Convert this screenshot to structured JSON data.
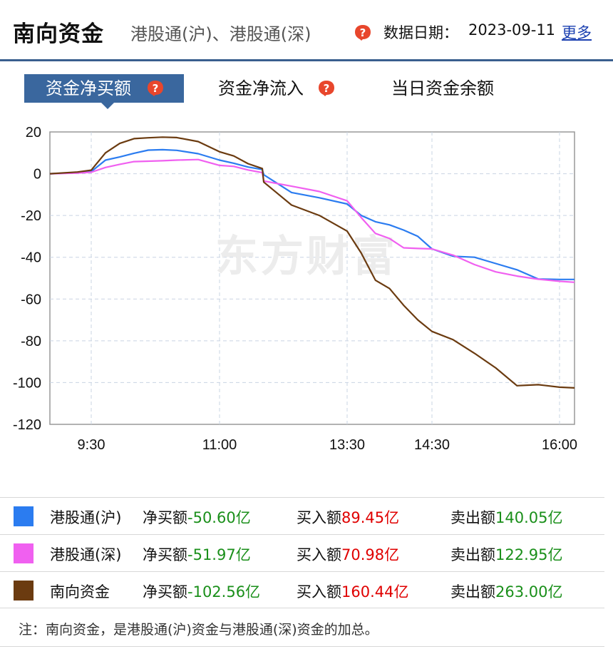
{
  "header": {
    "title": "南向资金",
    "subtitle": "港股通(沪)、港股通(深)",
    "date_label": "数据日期：",
    "date_value": "2023-09-11",
    "more_link": "更多"
  },
  "tabs": [
    {
      "label": "资金净买额",
      "active": true
    },
    {
      "label": "资金净流入",
      "active": false
    },
    {
      "label": "当日资金余额",
      "active": false
    }
  ],
  "watermark": "东方财富",
  "chart_data": {
    "type": "line",
    "xlabel": "",
    "ylabel": "",
    "ylim": [
      -120,
      20
    ],
    "yticks": [
      20,
      0,
      -20,
      -40,
      -60,
      -80,
      -100,
      -120
    ],
    "xticks": [
      "9:30",
      "11:00",
      "13:30",
      "14:30",
      "16:00"
    ],
    "grid": true,
    "series": [
      {
        "name": "港股通(沪)",
        "color": "#2b7cf0",
        "x": [
          "09:00",
          "09:20",
          "09:30",
          "09:40",
          "09:50",
          "10:00",
          "10:10",
          "10:20",
          "10:30",
          "10:45",
          "11:00",
          "11:10",
          "11:20",
          "11:30",
          "13:00",
          "13:10",
          "13:20",
          "13:30",
          "13:40",
          "13:50",
          "14:00",
          "14:10",
          "14:20",
          "14:30",
          "14:45",
          "15:00",
          "15:15",
          "15:30",
          "15:45",
          "16:00",
          "16:10"
        ],
        "y": [
          0,
          0.5,
          1,
          6.5,
          8,
          9.8,
          11.3,
          11.5,
          11.2,
          9.6,
          6.5,
          5,
          3.2,
          2,
          -0.5,
          -9,
          -11.5,
          -14.5,
          -20,
          -23,
          -24.5,
          -27,
          -30,
          -36,
          -39.5,
          -40,
          -43,
          -46,
          -50.4,
          -50.6,
          -50.6
        ]
      },
      {
        "name": "港股通(深)",
        "color": "#f060f0",
        "x": [
          "09:00",
          "09:20",
          "09:30",
          "09:40",
          "09:50",
          "10:00",
          "10:10",
          "10:20",
          "10:30",
          "10:45",
          "11:00",
          "11:10",
          "11:20",
          "11:30",
          "13:00",
          "13:10",
          "13:20",
          "13:30",
          "13:40",
          "13:50",
          "14:00",
          "14:10",
          "14:20",
          "14:30",
          "14:45",
          "15:00",
          "15:15",
          "15:30",
          "15:45",
          "16:00",
          "16:10"
        ],
        "y": [
          0,
          0.3,
          0.7,
          3,
          4.5,
          5.8,
          6,
          6.2,
          6.5,
          6.8,
          4,
          3.5,
          1.8,
          0.5,
          -3.5,
          -6,
          -8.5,
          -13,
          -21,
          -28.6,
          -31,
          -35.5,
          -35.8,
          -36,
          -39,
          -43.5,
          -47,
          -49,
          -50.5,
          -51.5,
          -51.97
        ]
      },
      {
        "name": "南向资金",
        "color": "#6b3b10",
        "x": [
          "09:00",
          "09:20",
          "09:30",
          "09:40",
          "09:50",
          "10:00",
          "10:10",
          "10:20",
          "10:30",
          "10:45",
          "11:00",
          "11:10",
          "11:20",
          "11:30",
          "13:00",
          "13:10",
          "13:20",
          "13:30",
          "13:40",
          "13:50",
          "14:00",
          "14:10",
          "14:20",
          "14:30",
          "14:45",
          "15:00",
          "15:15",
          "15:30",
          "15:45",
          "16:00",
          "16:10"
        ],
        "y": [
          0,
          0.8,
          1.7,
          10,
          14.5,
          16.8,
          17.2,
          17.5,
          17.3,
          15.4,
          10.5,
          8.5,
          4.8,
          2.5,
          -4,
          -15,
          -20,
          -27.5,
          -38,
          -51,
          -55,
          -63,
          -70,
          -75.5,
          -79.5,
          -86,
          -93,
          -101.5,
          -101,
          -102.2,
          -102.56
        ]
      }
    ]
  },
  "legend": [
    {
      "name": "港股通(沪)",
      "color": "#2b7cf0",
      "net_label": "净买额",
      "net_value": "-50.60亿",
      "buy_label": "买入额",
      "buy_value": "89.45亿",
      "sell_label": "卖出额",
      "sell_value": "140.05亿"
    },
    {
      "name": "港股通(深)",
      "color": "#f060f0",
      "net_label": "净买额",
      "net_value": "-51.97亿",
      "buy_label": "买入额",
      "buy_value": "70.98亿",
      "sell_label": "卖出额",
      "sell_value": "122.95亿"
    },
    {
      "name": "南向资金",
      "color": "#6b3b10",
      "net_label": "净买额",
      "net_value": "-102.56亿",
      "buy_label": "买入额",
      "buy_value": "160.44亿",
      "sell_label": "卖出额",
      "sell_value": "263.00亿"
    }
  ],
  "note": "注：南向资金，是港股通(沪)资金与港股通(深)资金的加总。"
}
